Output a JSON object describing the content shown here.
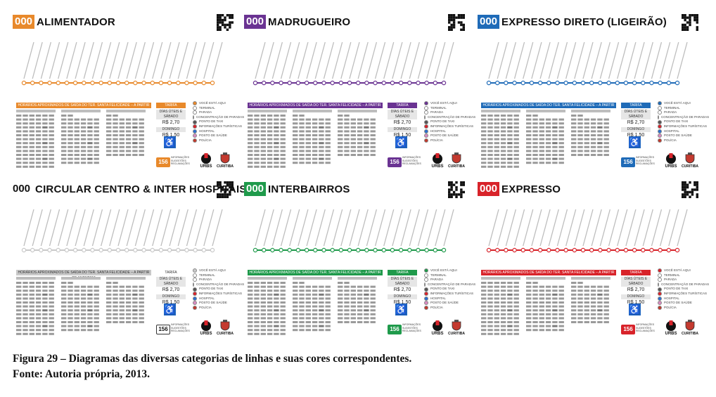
{
  "panels": [
    {
      "badge": "000",
      "name": "ALIMENTADOR",
      "color": "#e8892b",
      "badge_style": "filled"
    },
    {
      "badge": "000",
      "name": "MADRUGUEIRO",
      "color": "#6a3392",
      "badge_style": "filled"
    },
    {
      "badge": "000",
      "name": "EXPRESSO DIRETO (LIGEIRÃO)",
      "color": "#1f6bb8",
      "badge_style": "filled"
    },
    {
      "badge": "000",
      "name": "CIRCULAR CENTRO & INTER HOSPITAIS",
      "color": "#c9c9c9",
      "badge_style": "plain"
    },
    {
      "badge": "000",
      "name": "INTERBAIRROS",
      "color": "#1f9a4b",
      "badge_style": "filled"
    },
    {
      "badge": "000",
      "name": "EXPRESSO",
      "color": "#d8232a",
      "badge_style": "filled"
    }
  ],
  "schedule_title": "HORÁRIOS APROXIMADOS DE SAÍDA DO TER. SANTA FELICIDADE – A PARTIR DE 10/08/2013",
  "tarifa_label": "TARIFA",
  "tarifa_rows": [
    "DÍAS ÚTEIS E SÁBADO",
    "R$ 2,70",
    "DOMINGO",
    "R$ 1,50"
  ],
  "legend": [
    "VOCÊ ESTÁ AQUI",
    "TERMINAL",
    "PARADA",
    "CONCENTRAÇÃO DE PARADAS",
    "PONTO DE TAXI",
    "INFORMAÇÕES TURÍSTICAS",
    "HOSPITAL",
    "POSTO DE SAÚDE",
    "POLÍCIA"
  ],
  "f156": "156",
  "f156_text": "INFORMAÇÕES SUGESTÕES RECLAMAÇÕES",
  "urbs": "URBS",
  "curitiba": "CURITIBA",
  "caption": {
    "line1": "Figura 29 – Diagramas das diversas categorias de linhas e suas cores correspondentes.",
    "line2": "Fonte: Autoria própria, 2013."
  }
}
